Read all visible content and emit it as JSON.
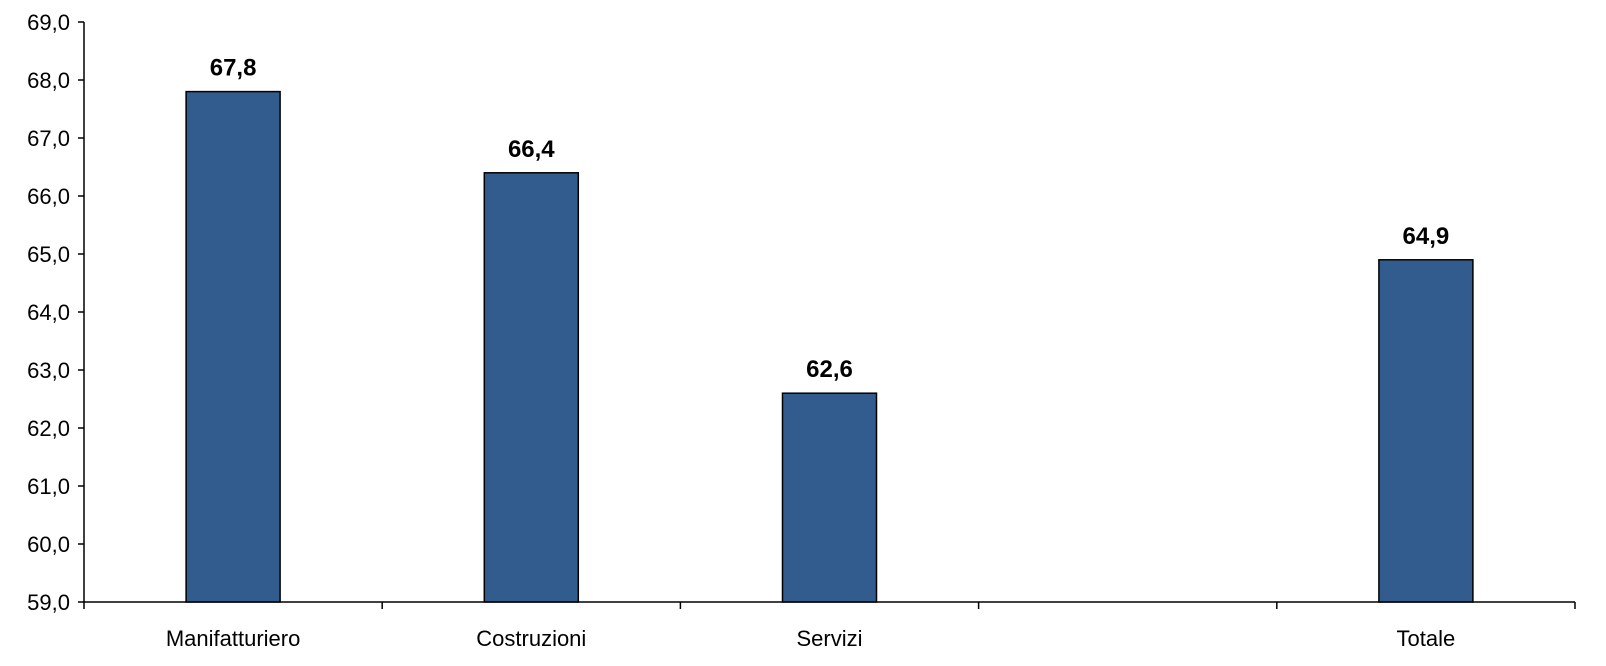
{
  "chart_data": {
    "type": "bar",
    "title": "",
    "xlabel": "",
    "ylabel": "",
    "ylim": [
      59,
      69
    ],
    "y_ticks": [
      59,
      60,
      61,
      62,
      63,
      64,
      65,
      66,
      67,
      68,
      69
    ],
    "y_tick_labels": [
      "59,0",
      "60,0",
      "61,0",
      "62,0",
      "63,0",
      "64,0",
      "65,0",
      "66,0",
      "67,0",
      "68,0",
      "69,0"
    ],
    "categories": [
      "Manifatturiero",
      "Costruzioni",
      "Servizi",
      "",
      "Totale"
    ],
    "values": [
      67.8,
      66.4,
      62.6,
      null,
      64.9
    ],
    "value_labels": [
      "67,8",
      "66,4",
      "62,6",
      "",
      "64,9"
    ],
    "grid": false,
    "legend": "none",
    "colors": {
      "bar_fill": "#335C8E",
      "bar_stroke": "#000000",
      "axis": "#000000"
    }
  }
}
